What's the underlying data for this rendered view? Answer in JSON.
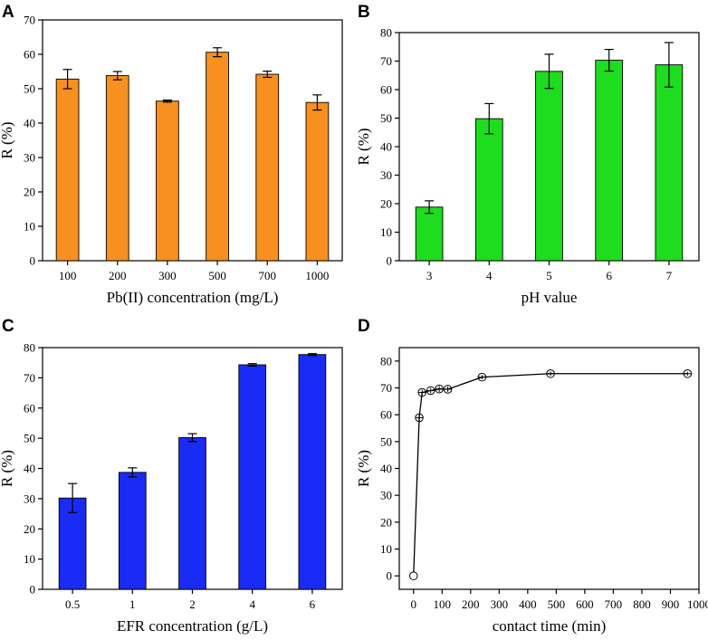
{
  "chart_data": [
    {
      "panel": "A",
      "type": "bar",
      "categories": [
        "100",
        "200",
        "300",
        "500",
        "700",
        "1000"
      ],
      "values": [
        52.8,
        53.8,
        46.4,
        60.6,
        54.2,
        46.0
      ],
      "errors": [
        2.8,
        1.2,
        0.3,
        1.3,
        0.9,
        2.2
      ],
      "color": "#f7901e",
      "xlabel": "Pb(II) concentration (mg/L)",
      "ylabel": "R (%)",
      "ylim": [
        0,
        70
      ],
      "yticks": [
        0,
        10,
        20,
        30,
        40,
        50,
        60,
        70
      ]
    },
    {
      "panel": "B",
      "type": "bar",
      "categories": [
        "3",
        "4",
        "5",
        "6",
        "7"
      ],
      "values": [
        18.8,
        49.8,
        66.4,
        70.3,
        68.7
      ],
      "errors": [
        2.2,
        5.3,
        6.0,
        3.8,
        7.8
      ],
      "color": "#1edc1e",
      "xlabel": "pH value",
      "ylabel": "R (%)",
      "ylim": [
        0,
        80
      ],
      "yticks": [
        0,
        10,
        20,
        30,
        40,
        50,
        60,
        70,
        80
      ]
    },
    {
      "panel": "C",
      "type": "bar",
      "categories": [
        "0.5",
        "1",
        "2",
        "4",
        "6"
      ],
      "values": [
        30.2,
        38.7,
        50.2,
        74.3,
        77.7
      ],
      "errors": [
        4.8,
        1.5,
        1.3,
        0.4,
        0.3
      ],
      "color": "#1a2bf5",
      "xlabel": "EFR concentration (g/L)",
      "ylabel": "R (%)",
      "ylim": [
        0,
        80
      ],
      "yticks": [
        0,
        10,
        20,
        30,
        40,
        50,
        60,
        70,
        80
      ]
    },
    {
      "panel": "D",
      "type": "line",
      "x": [
        0,
        20,
        30,
        60,
        90,
        120,
        240,
        480,
        960
      ],
      "y": [
        0,
        58.9,
        68.3,
        69.0,
        69.6,
        69.5,
        74.0,
        75.3,
        75.3
      ],
      "errors": [
        0,
        1.2,
        1.0,
        1.0,
        1.1,
        1.0,
        0.8,
        0.8,
        0.7
      ],
      "xlabel": "contact time (min)",
      "ylabel": "R (%)",
      "xlim": [
        -50,
        1000
      ],
      "ylim": [
        -5,
        85
      ],
      "xticks": [
        0,
        100,
        200,
        300,
        400,
        500,
        600,
        700,
        800,
        900,
        1000
      ],
      "yticks": [
        0,
        10,
        20,
        30,
        40,
        50,
        60,
        70,
        80
      ]
    }
  ]
}
